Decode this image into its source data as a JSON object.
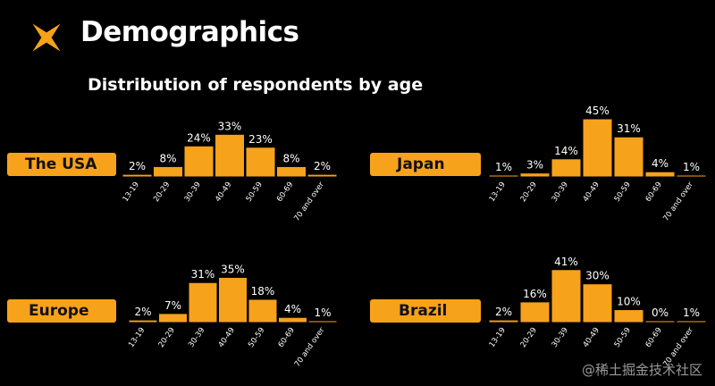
{
  "header": {
    "title": "Demographics",
    "subtitle": "Distribution of respondents by age"
  },
  "colors": {
    "accent": "#F7A21B",
    "background": "#000000",
    "text": "#FFFFFF",
    "label_text": "#111111",
    "watermark": "#9A9A9A"
  },
  "icons": {
    "logo": "sparkle-star-icon"
  },
  "watermark": "@稀土掘金技术社区",
  "chart_data": [
    {
      "type": "bar",
      "region": "The USA",
      "categories": [
        "13-19",
        "20-29",
        "30-39",
        "40-49",
        "50-59",
        "60-69",
        "70 and over"
      ],
      "values": [
        2,
        8,
        24,
        33,
        23,
        8,
        2
      ],
      "value_labels": [
        "2%",
        "8%",
        "24%",
        "33%",
        "23%",
        "8%",
        "2%"
      ],
      "ylim": [
        0,
        45
      ],
      "grid": false,
      "legend": "none"
    },
    {
      "type": "bar",
      "region": "Japan",
      "categories": [
        "13-19",
        "20-29",
        "30-39",
        "40-49",
        "50-59",
        "60-69",
        "70 and over"
      ],
      "values": [
        1,
        3,
        14,
        45,
        31,
        4,
        1
      ],
      "value_labels": [
        "1%",
        "3%",
        "14%",
        "45%",
        "31%",
        "4%",
        "1%"
      ],
      "ylim": [
        0,
        45
      ],
      "grid": false,
      "legend": "none"
    },
    {
      "type": "bar",
      "region": "Europe",
      "categories": [
        "13-19",
        "20-29",
        "30-39",
        "40-49",
        "50-59",
        "60-69",
        "70 and over"
      ],
      "values": [
        2,
        7,
        31,
        35,
        18,
        4,
        1
      ],
      "value_labels": [
        "2%",
        "7%",
        "31%",
        "35%",
        "18%",
        "4%",
        "1%"
      ],
      "ylim": [
        0,
        45
      ],
      "grid": false,
      "legend": "none"
    },
    {
      "type": "bar",
      "region": "Brazil",
      "categories": [
        "13-19",
        "20-29",
        "30-39",
        "40-49",
        "50-59",
        "60-69",
        "70 and over"
      ],
      "values": [
        2,
        16,
        41,
        30,
        10,
        0,
        1
      ],
      "value_labels": [
        "2%",
        "16%",
        "41%",
        "30%",
        "10%",
        "0%",
        "1%"
      ],
      "ylim": [
        0,
        45
      ],
      "grid": false,
      "legend": "none"
    }
  ]
}
